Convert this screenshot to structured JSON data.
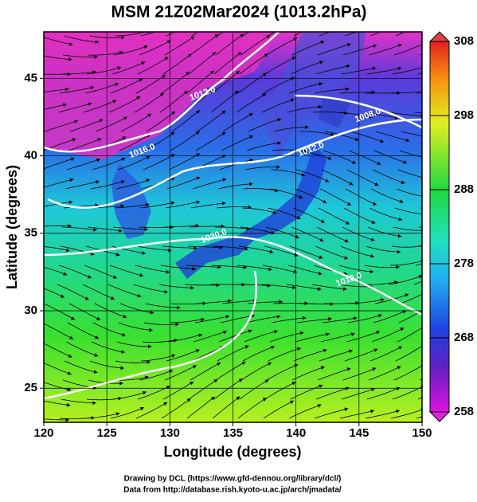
{
  "chart_data": {
    "type": "map",
    "title": "MSM 21Z02Mar2024 (1013.2hPa)",
    "x_label": "Longitude (degrees)",
    "y_label": "Latitude  (degrees)",
    "xlim": [
      120,
      150
    ],
    "xticks": [
      120,
      125,
      130,
      135,
      140,
      145,
      150
    ],
    "ylim": [
      22.8,
      48
    ],
    "yticks": [
      25,
      30,
      35,
      40,
      45
    ],
    "grid": true,
    "colorbar": {
      "lim": [
        258,
        308
      ],
      "ticks": [
        258,
        268,
        278,
        288,
        298,
        308
      ]
    },
    "annotations": [
      {
        "text": "1012.0",
        "x": 132.6,
        "y": 44.0
      },
      {
        "text": "1016.0",
        "x": 127.8,
        "y": 40.3
      },
      {
        "text": "1008.0",
        "x": 145.7,
        "y": 42.6
      },
      {
        "text": "1012.0",
        "x": 141.2,
        "y": 40.4
      },
      {
        "text": "1020.0",
        "x": 133.5,
        "y": 34.8
      },
      {
        "text": "1016.0",
        "x": 144.2,
        "y": 32.0
      }
    ],
    "footer": [
      "Drawing by DCL (https://www.gfd-dennou.org/library/dcl/)",
      "Data from http://database.rish.kyoto-u.ac.jp/arch/jmadata/"
    ]
  }
}
